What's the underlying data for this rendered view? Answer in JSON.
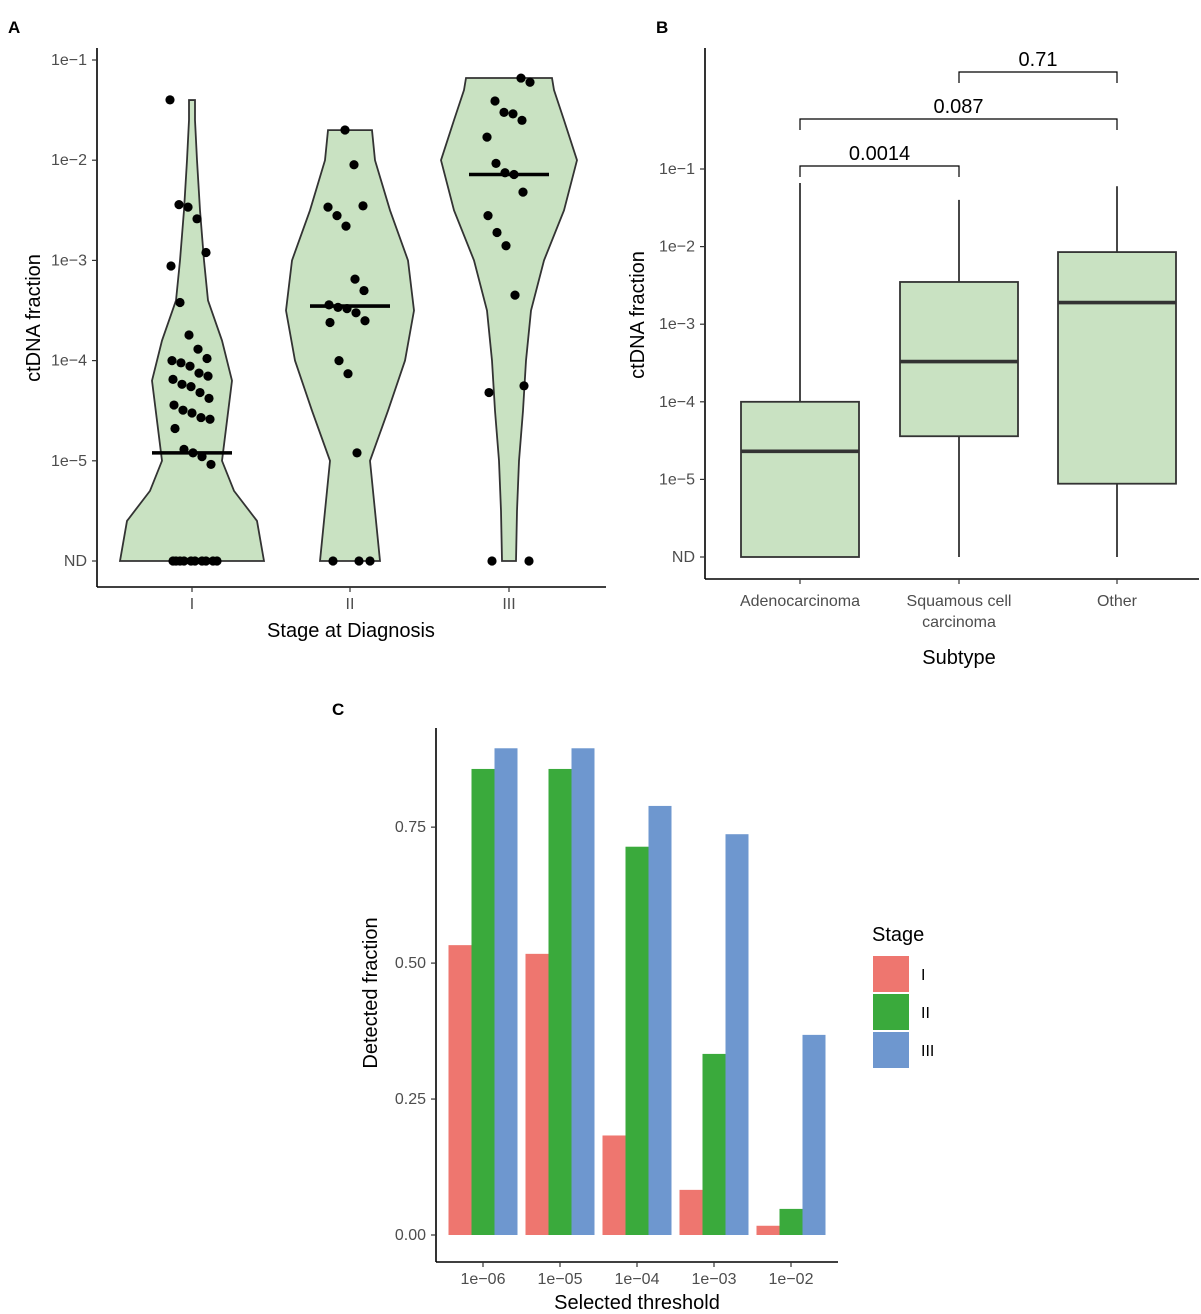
{
  "chart_data": [
    {
      "panel": "A",
      "type": "scatter",
      "xlabel": "Stage at Diagnosis",
      "ylabel": "ctDNA fraction",
      "categories": [
        "I",
        "II",
        "III"
      ],
      "y_scale": "log10",
      "y_ticks": [
        "ND",
        "1e−5",
        "1e−4",
        "1e−3",
        "1e−2",
        "1e−1"
      ],
      "y_tick_values": [
        1e-06,
        1e-05,
        0.0001,
        0.001,
        0.01,
        0.1
      ],
      "fill": "#c9e2c2",
      "medians": [
        1.2e-05,
        0.00035,
        0.0072
      ],
      "violins": [
        {
          "category": "I",
          "min": 1e-06,
          "max": 0.04
        },
        {
          "category": "II",
          "min": 1e-06,
          "max": 0.02
        },
        {
          "category": "III",
          "min": 1e-06,
          "max": 0.066
        }
      ],
      "points": [
        {
          "category": "I",
          "values": [
            0.04,
            0.0036,
            0.0034,
            0.0026,
            0.0012,
            0.00088,
            0.00038,
            0.00018,
            0.00013,
            0.000105,
            0.0001,
            9.5e-05,
            8.8e-05,
            7.5e-05,
            7e-05,
            6.5e-05,
            5.8e-05,
            5.5e-05,
            4.8e-05,
            4.2e-05,
            3.6e-05,
            3.2e-05,
            3e-05,
            2.7e-05,
            2.6e-05,
            2.1e-05,
            1.3e-05,
            1.2e-05,
            1.1e-05,
            9.2e-06,
            1e-06,
            1e-06,
            1e-06,
            1e-06,
            1e-06,
            1e-06,
            1e-06,
            1e-06,
            1e-06,
            1e-06
          ]
        },
        {
          "category": "II",
          "values": [
            0.02,
            0.009,
            0.0035,
            0.0034,
            0.0028,
            0.0022,
            0.00065,
            0.0005,
            0.00036,
            0.00034,
            0.00033,
            0.0003,
            0.00025,
            0.00024,
            0.0001,
            7.4e-05,
            1.2e-05,
            1e-06,
            1e-06,
            1e-06
          ]
        },
        {
          "category": "III",
          "values": [
            0.066,
            0.06,
            0.039,
            0.03,
            0.029,
            0.025,
            0.017,
            0.0093,
            0.0075,
            0.0072,
            0.0048,
            0.0028,
            0.0019,
            0.0014,
            0.00045,
            5.6e-05,
            4.8e-05,
            1e-06,
            1e-06
          ]
        }
      ]
    },
    {
      "panel": "B",
      "type": "box",
      "xlabel": "Subtype",
      "ylabel": "ctDNA fraction",
      "categories": [
        "Adenocarcinoma",
        "Squamous cell carcinoma",
        "Other"
      ],
      "category_lines": [
        [
          "Adenocarcinoma"
        ],
        [
          "Squamous cell",
          "carcinoma"
        ],
        [
          "Other"
        ]
      ],
      "y_scale": "log10",
      "y_ticks": [
        "ND",
        "1e−5",
        "1e−4",
        "1e−3",
        "1e−2",
        "1e−1"
      ],
      "y_tick_values": [
        1e-06,
        1e-05,
        0.0001,
        0.001,
        0.01,
        0.1
      ],
      "fill": "#c9e2c2",
      "boxes": [
        {
          "category": "Adenocarcinoma",
          "min": 1e-06,
          "q1": 1e-06,
          "median": 2.3e-05,
          "q3": 0.0001,
          "max": 0.066
        },
        {
          "category": "Squamous cell carcinoma",
          "min": 1e-06,
          "q1": 3.6e-05,
          "median": 0.00033,
          "q3": 0.0035,
          "max": 0.04
        },
        {
          "category": "Other",
          "min": 1e-06,
          "q1": 8.8e-06,
          "median": 0.0019,
          "q3": 0.0085,
          "max": 0.06
        }
      ],
      "comparisons": [
        {
          "from": "Adenocarcinoma",
          "to": "Squamous cell carcinoma",
          "label": "0.0014",
          "level": 0
        },
        {
          "from": "Adenocarcinoma",
          "to": "Other",
          "label": "0.087",
          "level": 1
        },
        {
          "from": "Squamous cell carcinoma",
          "to": "Other",
          "label": "0.71",
          "level": 2
        }
      ]
    },
    {
      "panel": "C",
      "type": "bar",
      "xlabel": "Selected threshold",
      "ylabel": "Detected fraction",
      "categories": [
        "1e−06",
        "1e−05",
        "1e−04",
        "1e−03",
        "1e−02"
      ],
      "ylim": [
        0,
        0.89
      ],
      "y_ticks": [
        "0.00",
        "0.25",
        "0.50",
        "0.75"
      ],
      "y_tick_values": [
        0,
        0.25,
        0.5,
        0.75
      ],
      "legend_title": "Stage",
      "series": [
        {
          "name": "I",
          "color": "#ee766f",
          "values": [
            0.533,
            0.517,
            0.183,
            0.083,
            0.017
          ]
        },
        {
          "name": "II",
          "color": "#3aaa3c",
          "values": [
            0.857,
            0.857,
            0.714,
            0.333,
            0.048
          ]
        },
        {
          "name": "III",
          "color": "#6e97cf",
          "values": [
            0.895,
            0.895,
            0.789,
            0.737,
            0.368
          ]
        }
      ]
    }
  ]
}
